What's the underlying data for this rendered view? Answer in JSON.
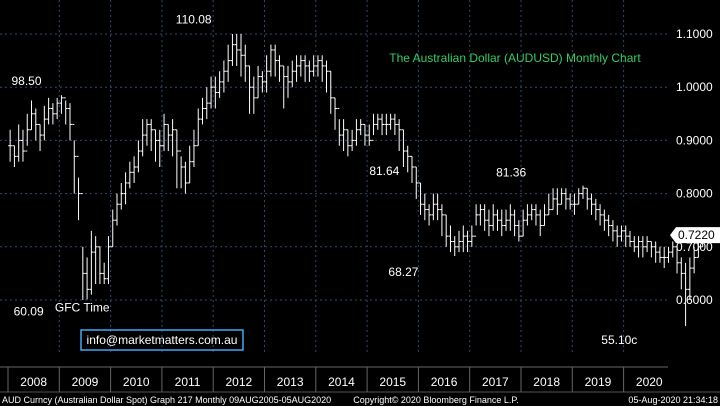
{
  "chart_data": {
    "type": "ohlc",
    "title": "The Australian Dollar (AUDUSD) Monthly Chart",
    "title_color": "#33cc66",
    "series_color": "#ffffff",
    "background": "#000000",
    "grid": true,
    "ylim": [
      0.52,
      1.125
    ],
    "y_ticks": [
      "1.1000",
      "1.0000",
      "0.9000",
      "0.8000",
      "0.7000",
      "0.6000"
    ],
    "y_tick_values": [
      1.1,
      1.0,
      0.9,
      0.8,
      0.7,
      0.6
    ],
    "x_ticks": [
      "2008",
      "2009",
      "2010",
      "2011",
      "2012",
      "2013",
      "2014",
      "2015",
      "2016",
      "2017",
      "2018",
      "2019",
      "2020"
    ],
    "last_price": {
      "label": "0.7220",
      "value": 0.722
    },
    "annotations": [
      {
        "text": "98.50",
        "color": "#ffffff",
        "x": "2008-06",
        "y": 0.985
      },
      {
        "text": "110.08",
        "color": "#ffffff",
        "x": "2011-07",
        "y": 1.1008
      },
      {
        "text": "81.64",
        "color": "#ffffff",
        "x": "2015-05",
        "y": 0.8164
      },
      {
        "text": "81.36",
        "color": "#ffffff",
        "x": "2018-01",
        "y": 0.8136
      },
      {
        "text": "68.27",
        "color": "#ffffff",
        "x": "2015-09",
        "y": 0.6827
      },
      {
        "text": "60.09",
        "color": "#ffffff",
        "x": "2008-10",
        "y": 0.6009
      },
      {
        "text": "GFC Time",
        "color": "#ff8c1a",
        "x": "2008-11",
        "y": 0.6009
      },
      {
        "text": "55.10c",
        "color": "#ffffff",
        "x": "2020-03",
        "y": 0.551
      }
    ],
    "closes": [
      0.89,
      0.87,
      0.9,
      0.88,
      0.92,
      0.95,
      0.93,
      0.91,
      0.94,
      0.96,
      0.95,
      0.97,
      0.98,
      0.96,
      0.93,
      0.87,
      0.8,
      0.65,
      0.62,
      0.69,
      0.7,
      0.65,
      0.64,
      0.7,
      0.75,
      0.78,
      0.8,
      0.82,
      0.84,
      0.85,
      0.88,
      0.91,
      0.93,
      0.92,
      0.9,
      0.89,
      0.93,
      0.91,
      0.92,
      0.88,
      0.85,
      0.82,
      0.86,
      0.89,
      0.94,
      0.96,
      0.97,
      1.0,
      0.99,
      1.01,
      1.03,
      1.05,
      1.08,
      1.07,
      1.06,
      1.04,
      1.0,
      0.98,
      1.02,
      1.01,
      1.03,
      1.07,
      1.05,
      1.04,
      1.02,
      1.01,
      1.03,
      1.04,
      1.05,
      1.04,
      1.03,
      1.04,
      1.05,
      1.04,
      1.03,
      0.98,
      0.96,
      0.91,
      0.92,
      0.89,
      0.9,
      0.92,
      0.93,
      0.91,
      0.9,
      0.93,
      0.94,
      0.93,
      0.93,
      0.94,
      0.93,
      0.92,
      0.88,
      0.87,
      0.85,
      0.82,
      0.78,
      0.77,
      0.76,
      0.78,
      0.77,
      0.76,
      0.72,
      0.71,
      0.7,
      0.71,
      0.72,
      0.71,
      0.72,
      0.76,
      0.77,
      0.75,
      0.74,
      0.76,
      0.75,
      0.74,
      0.75,
      0.76,
      0.74,
      0.72,
      0.75,
      0.76,
      0.77,
      0.76,
      0.74,
      0.76,
      0.77,
      0.79,
      0.78,
      0.8,
      0.79,
      0.78,
      0.78,
      0.8,
      0.81,
      0.79,
      0.78,
      0.77,
      0.76,
      0.75,
      0.74,
      0.73,
      0.72,
      0.73,
      0.72,
      0.71,
      0.7,
      0.71,
      0.7,
      0.71,
      0.7,
      0.69,
      0.68,
      0.68,
      0.69,
      0.7,
      0.67,
      0.65,
      0.62,
      0.66,
      0.68,
      0.7,
      0.72
    ],
    "highs": [
      0.92,
      0.89,
      0.93,
      0.92,
      0.95,
      0.975,
      0.96,
      0.93,
      0.965,
      0.98,
      0.97,
      0.98,
      0.985,
      0.975,
      0.97,
      0.9,
      0.83,
      0.7,
      0.68,
      0.73,
      0.72,
      0.7,
      0.67,
      0.72,
      0.77,
      0.8,
      0.82,
      0.84,
      0.86,
      0.87,
      0.9,
      0.94,
      0.94,
      0.94,
      0.92,
      0.92,
      0.95,
      0.93,
      0.94,
      0.92,
      0.87,
      0.86,
      0.89,
      0.92,
      0.96,
      0.98,
      1.0,
      1.02,
      1.02,
      1.03,
      1.05,
      1.08,
      1.1,
      1.1,
      1.1,
      1.08,
      1.04,
      1.02,
      1.04,
      1.03,
      1.06,
      1.08,
      1.08,
      1.06,
      1.04,
      1.04,
      1.05,
      1.06,
      1.06,
      1.06,
      1.05,
      1.06,
      1.06,
      1.06,
      1.05,
      1.03,
      0.98,
      0.94,
      0.94,
      0.92,
      0.92,
      0.94,
      0.94,
      0.93,
      0.93,
      0.95,
      0.95,
      0.95,
      0.95,
      0.95,
      0.95,
      0.94,
      0.92,
      0.89,
      0.87,
      0.85,
      0.82,
      0.8,
      0.78,
      0.8,
      0.8,
      0.78,
      0.76,
      0.74,
      0.72,
      0.73,
      0.74,
      0.73,
      0.74,
      0.78,
      0.78,
      0.78,
      0.77,
      0.78,
      0.77,
      0.77,
      0.77,
      0.78,
      0.77,
      0.75,
      0.77,
      0.78,
      0.78,
      0.78,
      0.77,
      0.78,
      0.8,
      0.81,
      0.81,
      0.81,
      0.81,
      0.8,
      0.8,
      0.81,
      0.815,
      0.81,
      0.8,
      0.79,
      0.78,
      0.77,
      0.76,
      0.75,
      0.74,
      0.74,
      0.74,
      0.73,
      0.72,
      0.72,
      0.72,
      0.72,
      0.71,
      0.71,
      0.7,
      0.7,
      0.7,
      0.71,
      0.7,
      0.68,
      0.67,
      0.68,
      0.7,
      0.72,
      0.73
    ],
    "lows": [
      0.86,
      0.85,
      0.86,
      0.86,
      0.89,
      0.92,
      0.9,
      0.88,
      0.9,
      0.93,
      0.93,
      0.94,
      0.95,
      0.93,
      0.9,
      0.8,
      0.75,
      0.6,
      0.601,
      0.61,
      0.63,
      0.63,
      0.63,
      0.63,
      0.7,
      0.74,
      0.77,
      0.78,
      0.81,
      0.82,
      0.84,
      0.87,
      0.89,
      0.88,
      0.86,
      0.85,
      0.88,
      0.88,
      0.87,
      0.81,
      0.81,
      0.8,
      0.82,
      0.85,
      0.89,
      0.93,
      0.94,
      0.96,
      0.96,
      0.98,
      0.99,
      1.01,
      1.04,
      1.04,
      1.02,
      1.01,
      0.95,
      0.95,
      0.98,
      0.99,
      0.99,
      1.02,
      1.02,
      1.01,
      0.96,
      0.98,
      1.0,
      1.01,
      1.02,
      1.01,
      1.01,
      1.02,
      1.02,
      1.01,
      0.99,
      0.95,
      0.92,
      0.89,
      0.88,
      0.87,
      0.88,
      0.89,
      0.91,
      0.89,
      0.89,
      0.91,
      0.92,
      0.91,
      0.91,
      0.92,
      0.91,
      0.88,
      0.85,
      0.84,
      0.82,
      0.79,
      0.76,
      0.75,
      0.74,
      0.75,
      0.75,
      0.72,
      0.7,
      0.69,
      0.6827,
      0.69,
      0.69,
      0.69,
      0.7,
      0.74,
      0.74,
      0.73,
      0.72,
      0.73,
      0.73,
      0.72,
      0.73,
      0.73,
      0.72,
      0.71,
      0.72,
      0.74,
      0.75,
      0.74,
      0.72,
      0.74,
      0.76,
      0.77,
      0.76,
      0.78,
      0.77,
      0.77,
      0.76,
      0.78,
      0.79,
      0.77,
      0.76,
      0.75,
      0.74,
      0.73,
      0.72,
      0.71,
      0.7,
      0.71,
      0.7,
      0.7,
      0.69,
      0.68,
      0.68,
      0.69,
      0.68,
      0.67,
      0.67,
      0.66,
      0.67,
      0.68,
      0.65,
      0.62,
      0.551,
      0.6,
      0.65,
      0.68,
      0.7
    ]
  },
  "watermark": {
    "text": "info@marketmatters.com.au",
    "border_color": "#3fa9f5"
  },
  "footer": {
    "left": "AUD Curncy (Australian Dollar Spot) Graph 217  Monthly 09AUG2005-05AUG2020",
    "center": "Copyright© 2020 Bloomberg Finance L.P.",
    "right": "05-Aug-2020 21:34:18"
  }
}
